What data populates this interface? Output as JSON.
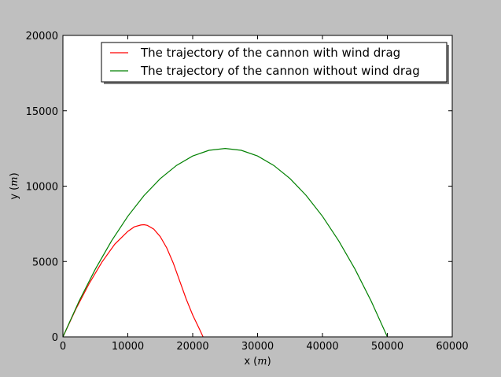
{
  "colors": {
    "figure_background": "#bfbfbf",
    "axes_background": "#ffffff",
    "with_drag": "#ff0000",
    "without_drag": "#008000"
  },
  "chart_data": {
    "type": "line",
    "title": "",
    "xlabel": "x ($m$)",
    "ylabel": "y ($m$)",
    "xlim": [
      0,
      60000
    ],
    "ylim": [
      0,
      20000
    ],
    "xticks": [
      0,
      10000,
      20000,
      30000,
      40000,
      50000,
      60000
    ],
    "yticks": [
      0,
      5000,
      10000,
      15000,
      20000
    ],
    "xtick_labels": [
      "0",
      "10000",
      "20000",
      "30000",
      "40000",
      "50000",
      "60000"
    ],
    "ytick_labels": [
      "0",
      "5000",
      "10000",
      "15000",
      "20000"
    ],
    "grid": false,
    "legend_position": "top-right",
    "series": [
      {
        "name": "The trajectory of the cannon with wind drag",
        "color": "#ff0000",
        "x": [
          0,
          2000,
          4000,
          6000,
          8000,
          10000,
          11000,
          12000,
          12500,
          13000,
          14000,
          15000,
          16000,
          17000,
          18000,
          19000,
          20000,
          21000,
          21600
        ],
        "y": [
          0,
          1850,
          3500,
          4950,
          6150,
          7000,
          7300,
          7420,
          7440,
          7400,
          7150,
          6650,
          5900,
          4900,
          3700,
          2500,
          1450,
          550,
          0
        ]
      },
      {
        "name": "The trajectory of the cannon without wind drag",
        "color": "#008000",
        "x": [
          0,
          2500,
          5000,
          7500,
          10000,
          12500,
          15000,
          17500,
          20000,
          22500,
          25000,
          27500,
          30000,
          32500,
          35000,
          37500,
          40000,
          42500,
          45000,
          47500,
          50000
        ],
        "y": [
          0,
          2375,
          4500,
          6375,
          8000,
          9375,
          10500,
          11375,
          12000,
          12375,
          12500,
          12375,
          12000,
          11375,
          10500,
          9375,
          8000,
          6375,
          4500,
          2375,
          0
        ]
      }
    ]
  }
}
